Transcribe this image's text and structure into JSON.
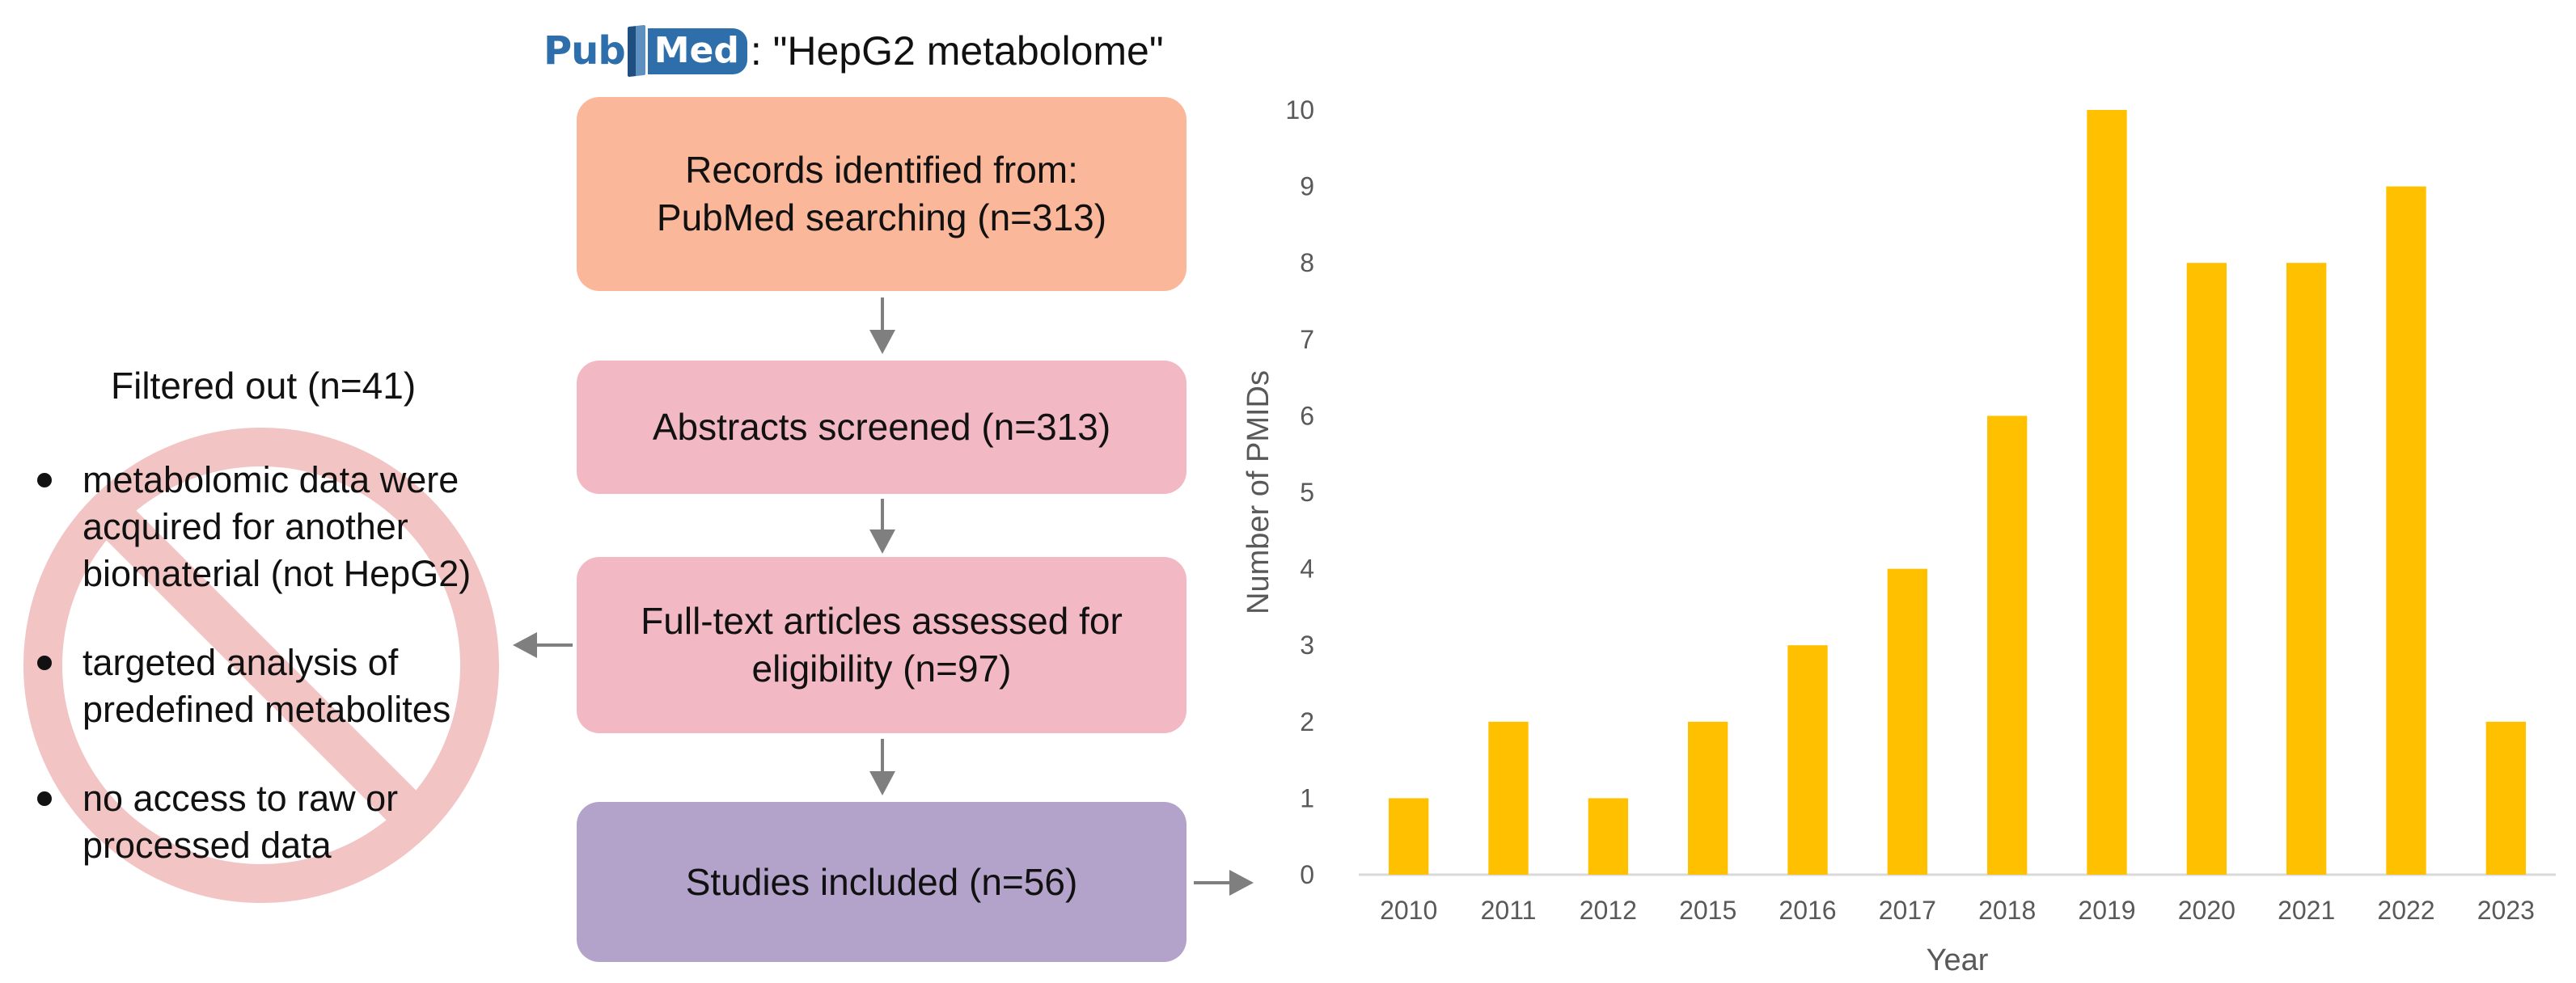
{
  "header": {
    "logo_pub": "Pub",
    "logo_med": "Med",
    "query": ": \"HepG2 metabolome\""
  },
  "flow": {
    "box1": {
      "line1": "Records identified from:",
      "line2": "PubMed searching  (n=313)"
    },
    "box2": {
      "line1": "Abstracts screened (n=313)"
    },
    "box3": {
      "line1": "Full-text articles  assessed for",
      "line2": "eligibility (n=97)"
    },
    "box4": {
      "line1": "Studies included (n=56)"
    }
  },
  "filtered": {
    "title": "Filtered out (n=41)",
    "items": [
      {
        "line1": "metabolomic data were",
        "line2": "acquired for another",
        "line3": "biomaterial (not HepG2)"
      },
      {
        "line1": "targeted analysis of",
        "line2": "predefined metabolites"
      },
      {
        "line1": "no access to raw or",
        "line2": "processed data"
      }
    ]
  },
  "colors": {
    "bar": "#ffc000",
    "box_orange": "#fbb79a",
    "box_pink": "#f2b9c4",
    "box_purple": "#b3a3cb",
    "arrow": "#7f7f7f",
    "no_sign": "#f2c4c4"
  },
  "chart_data": {
    "type": "bar",
    "categories": [
      "2010",
      "2011",
      "2012",
      "2015",
      "2016",
      "2017",
      "2018",
      "2019",
      "2020",
      "2021",
      "2022",
      "2023"
    ],
    "values": [
      1,
      2,
      1,
      2,
      3,
      4,
      6,
      10,
      8,
      8,
      9,
      2
    ],
    "title": "",
    "xlabel": "Year",
    "ylabel": "Number of PMIDs",
    "ylim": [
      0,
      10
    ],
    "yticks": [
      "0",
      "1",
      "2",
      "3",
      "4",
      "5",
      "6",
      "7",
      "8",
      "9",
      "10"
    ],
    "grid": false
  }
}
